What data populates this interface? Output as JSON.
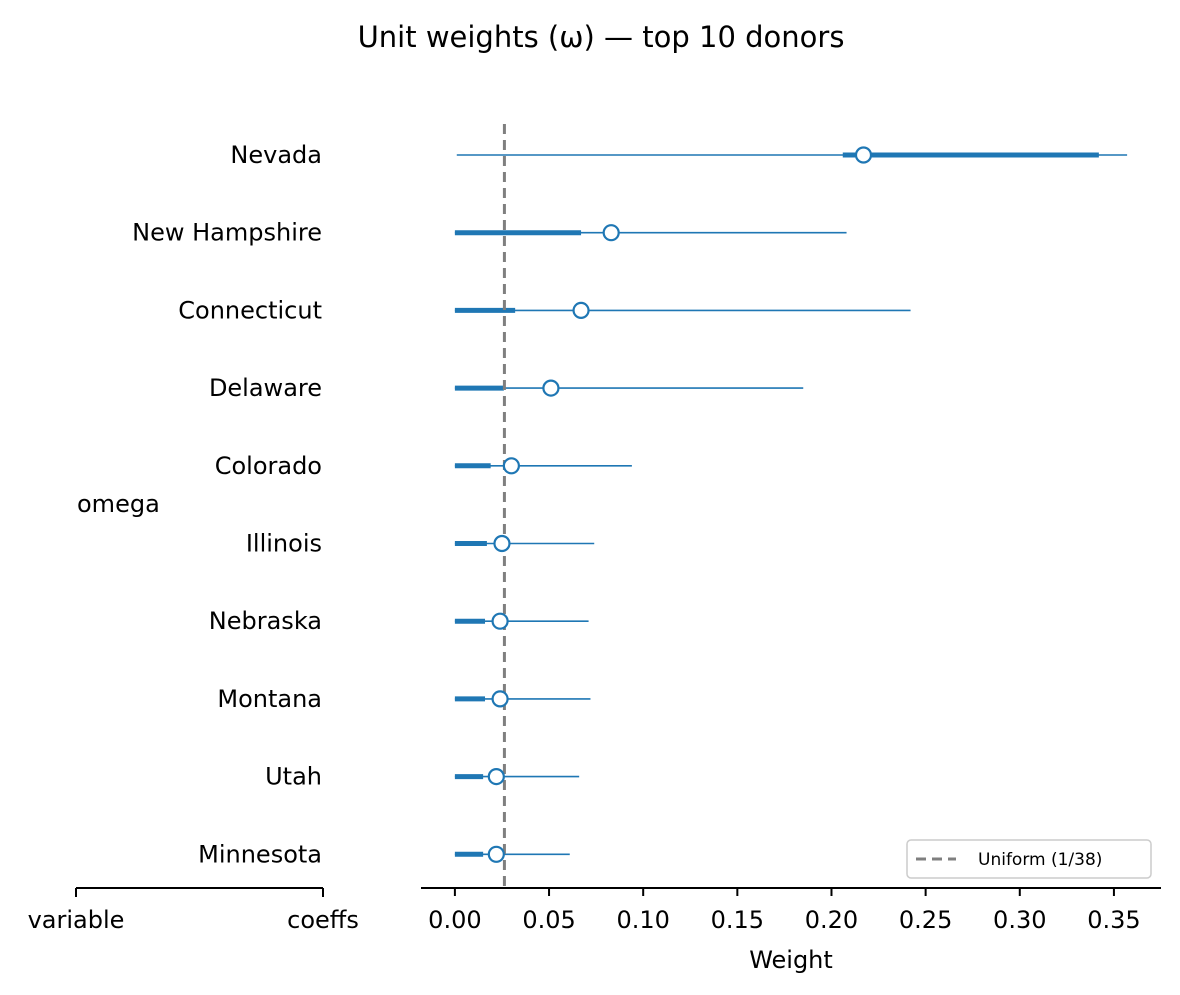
{
  "chart_data": {
    "type": "forest",
    "title": "Unit weights (ω) — top 10 donors",
    "xlabel": "Weight",
    "group_label": "omega",
    "table_headers": [
      "variable",
      "coeffs"
    ],
    "xlim": [
      -0.018,
      0.375
    ],
    "xticks": [
      0.0,
      0.05,
      0.1,
      0.15,
      0.2,
      0.25,
      0.3,
      0.35
    ],
    "xtick_labels": [
      "0.00",
      "0.05",
      "0.10",
      "0.15",
      "0.20",
      "0.25",
      "0.30",
      "0.35"
    ],
    "reference_line": {
      "value": 0.0263,
      "label": "Uniform (1/38)",
      "style": "dashed",
      "color": "#7f7f7f"
    },
    "legend": {
      "location": "lower right",
      "entries": [
        "Uniform (1/38)"
      ]
    },
    "series_color": "#1f77b4",
    "units": [
      {
        "name": "Nevada",
        "mean": 0.217,
        "hdi_low": 0.001,
        "hdi_high": 0.357,
        "iqr_low": 0.206,
        "iqr_high": 0.342
      },
      {
        "name": "New Hampshire",
        "mean": 0.083,
        "hdi_low": 0.0,
        "hdi_high": 0.208,
        "iqr_low": 0.0,
        "iqr_high": 0.067
      },
      {
        "name": "Connecticut",
        "mean": 0.067,
        "hdi_low": 0.0,
        "hdi_high": 0.242,
        "iqr_low": 0.0,
        "iqr_high": 0.032
      },
      {
        "name": "Delaware",
        "mean": 0.051,
        "hdi_low": 0.0,
        "hdi_high": 0.185,
        "iqr_low": 0.0,
        "iqr_high": 0.026
      },
      {
        "name": "Colorado",
        "mean": 0.03,
        "hdi_low": 0.0,
        "hdi_high": 0.094,
        "iqr_low": 0.0,
        "iqr_high": 0.019
      },
      {
        "name": "Illinois",
        "mean": 0.025,
        "hdi_low": 0.0,
        "hdi_high": 0.074,
        "iqr_low": 0.0,
        "iqr_high": 0.017
      },
      {
        "name": "Nebraska",
        "mean": 0.024,
        "hdi_low": 0.0,
        "hdi_high": 0.071,
        "iqr_low": 0.0,
        "iqr_high": 0.016
      },
      {
        "name": "Montana",
        "mean": 0.024,
        "hdi_low": 0.0,
        "hdi_high": 0.072,
        "iqr_low": 0.0,
        "iqr_high": 0.016
      },
      {
        "name": "Utah",
        "mean": 0.022,
        "hdi_low": 0.0,
        "hdi_high": 0.066,
        "iqr_low": 0.0,
        "iqr_high": 0.015
      },
      {
        "name": "Minnesota",
        "mean": 0.022,
        "hdi_low": 0.0,
        "hdi_high": 0.061,
        "iqr_low": 0.0,
        "iqr_high": 0.015
      }
    ]
  }
}
